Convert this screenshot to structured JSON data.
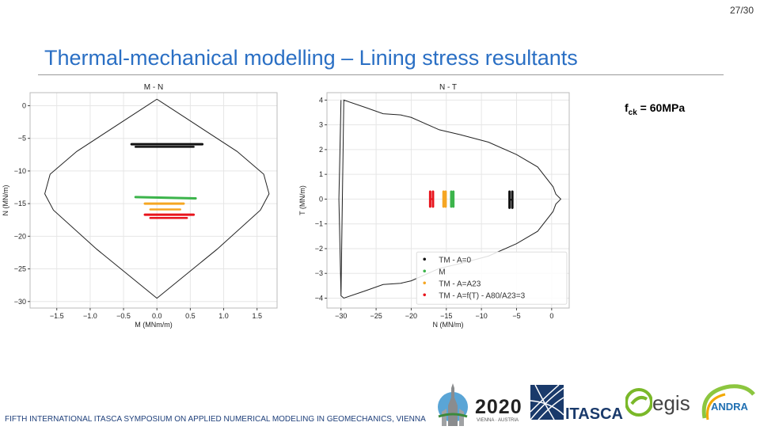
{
  "page_number": "27/30",
  "title": "Thermal-mechanical modelling – Lining stress resultants",
  "annotation": {
    "symbol": "f",
    "subscript": "ck",
    "value": " = 60MPa"
  },
  "footer": "FIFTH INTERNATIONAL ITASCA SYMPOSIUM ON APPLIED NUMERICAL MODELING IN GEOMECHANICS, VIENNA",
  "logos": {
    "symposium": {
      "year": "2020",
      "city": "VIENNA · AUSTRIA"
    },
    "itasca": "ITASCA",
    "egis": "egis",
    "andra": "ANDRA"
  },
  "colors": {
    "black": "#111111",
    "green": "#3cb44b",
    "orange": "#f5a623",
    "red": "#e8141c",
    "envelope": "#222222",
    "grid": "#e6e6e6"
  },
  "chart_data": [
    {
      "type": "scatter",
      "title": "M - N",
      "xlabel": "M (MNm/m)",
      "ylabel": "N (MN/m)",
      "xlim": [
        -1.9,
        1.8
      ],
      "ylim": [
        -31,
        2
      ],
      "xticks": [
        -1.5,
        -1.0,
        -0.5,
        0.0,
        0.5,
        1.0,
        1.5
      ],
      "xtick_labels": [
        "−1.5",
        "−1.0",
        "−0.5",
        "0.0",
        "0.5",
        "1.0",
        "1.5"
      ],
      "yticks": [
        0,
        -5,
        -10,
        -15,
        -20,
        -25,
        -30
      ],
      "ytick_labels": [
        "0",
        "−5",
        "−10",
        "−15",
        "−20",
        "−25",
        "−30"
      ],
      "grid": true,
      "envelope": {
        "x": [
          0.0,
          0.45,
          1.2,
          1.6,
          1.68,
          1.55,
          0.9,
          0.0,
          -0.9,
          -1.55,
          -1.68,
          -1.6,
          -1.2,
          -0.45,
          0.0
        ],
        "y": [
          1.0,
          -2.0,
          -7.0,
          -10.5,
          -13.5,
          -16.0,
          -22.0,
          -29.5,
          -22.0,
          -16.0,
          -13.5,
          -10.5,
          -7.0,
          -2.0,
          1.0
        ]
      },
      "series": [
        {
          "color": "black",
          "x": [
            -0.38,
            0.68
          ],
          "y": [
            -5.9,
            -5.9
          ],
          "x2": [
            -0.32,
            0.55
          ],
          "y2": [
            -6.3,
            -6.3
          ]
        },
        {
          "color": "green",
          "x": [
            -0.32,
            0.58
          ],
          "y": [
            -14.0,
            -14.2
          ],
          "x2": null,
          "y2": null
        },
        {
          "color": "orange",
          "x": [
            -0.18,
            0.4
          ],
          "y": [
            -15.0,
            -15.0
          ],
          "x2": [
            -0.1,
            0.35
          ],
          "y2": [
            -15.9,
            -15.9
          ]
        },
        {
          "color": "red",
          "x": [
            -0.18,
            0.55
          ],
          "y": [
            -16.7,
            -16.7
          ],
          "x2": [
            -0.1,
            0.45
          ],
          "y2": [
            -17.2,
            -17.2
          ]
        }
      ]
    },
    {
      "type": "scatter",
      "title": "N - T",
      "xlabel": "N (MN/m)",
      "ylabel": "T (MN/m)",
      "xlim": [
        -32,
        2.5
      ],
      "ylim": [
        -4.4,
        4.3
      ],
      "xticks": [
        -30,
        -25,
        -20,
        -15,
        -10,
        -5,
        0
      ],
      "xtick_labels": [
        "−30",
        "−25",
        "−20",
        "−15",
        "−10",
        "−5",
        "0"
      ],
      "yticks": [
        4,
        3,
        2,
        1,
        0,
        -1,
        -2,
        -3,
        -4
      ],
      "ytick_labels": [
        "4",
        "3",
        "2",
        "1",
        "0",
        "−1",
        "−2",
        "−3",
        "−4"
      ],
      "grid": true,
      "envelope": {
        "x": [
          -30.0,
          -29.6,
          -26.5,
          -24.0,
          -21.5,
          -20.0,
          -16.0,
          -13.0,
          -9.0,
          -5.0,
          -2.0,
          0.2,
          0.6,
          1.3,
          0.6,
          0.2,
          -2.0,
          -5.0,
          -9.0,
          -13.0,
          -16.0,
          -20.0,
          -21.5,
          -24.0,
          -26.5,
          -29.6,
          -30.0,
          -30.3,
          -30.0
        ],
        "y": [
          -3.9,
          4.0,
          3.7,
          3.45,
          3.4,
          3.3,
          2.8,
          2.6,
          2.3,
          1.8,
          1.3,
          0.5,
          0.2,
          0.0,
          -0.2,
          -0.5,
          -1.3,
          -1.8,
          -2.3,
          -2.6,
          -2.8,
          -3.3,
          -3.4,
          -3.45,
          -3.7,
          -4.0,
          -3.9,
          0.0,
          4.0
        ]
      },
      "series": [
        {
          "color": "black",
          "x": [
            -6.0,
            -5.6
          ],
          "y": [
            0.3,
            -0.35
          ]
        },
        {
          "color": "green",
          "x": [
            -14.3,
            -14.0
          ],
          "y": [
            0.3,
            -0.3
          ]
        },
        {
          "color": "orange",
          "x": [
            -15.4,
            -15.1
          ],
          "y": [
            0.3,
            -0.3
          ]
        },
        {
          "color": "red",
          "x": [
            -17.3,
            -16.9
          ],
          "y": [
            0.3,
            -0.3
          ]
        }
      ],
      "legend": {
        "position": "lower right",
        "entries": [
          {
            "color": "black",
            "label": "TM - A=0"
          },
          {
            "color": "green",
            "label": "M"
          },
          {
            "color": "orange",
            "label": "TM - A=A23"
          },
          {
            "color": "red",
            "label": "TM - A=f(T) - A80/A23=3"
          }
        ]
      }
    }
  ]
}
